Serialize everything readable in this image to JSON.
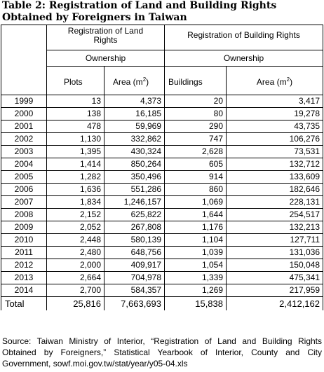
{
  "title": "Table 2: Registration of Land and Building Rights Obtained by Foreigners in Taiwan",
  "headers": {
    "land_group": "Registration of Land Rights",
    "building_group": "Registration of Building Rights",
    "ownership_land": "Ownership",
    "ownership_building": "Ownership",
    "col_plots": "Plots",
    "col_land_area": "Area (m",
    "col_buildings": "Buildings",
    "col_building_area": "Area (m",
    "area_superscript": "2",
    "area_close": ")"
  },
  "rows": [
    {
      "year": "1999",
      "plots": "13",
      "land_area": "4,373",
      "buildings": "20",
      "building_area": "3,417"
    },
    {
      "year": "2000",
      "plots": "138",
      "land_area": "16,185",
      "buildings": "80",
      "building_area": "19,278"
    },
    {
      "year": "2001",
      "plots": "478",
      "land_area": "59,969",
      "buildings": "290",
      "building_area": "43,735"
    },
    {
      "year": "2002",
      "plots": "1,130",
      "land_area": "332,862",
      "buildings": "747",
      "building_area": "106,276"
    },
    {
      "year": "2003",
      "plots": "1,395",
      "land_area": "430,324",
      "buildings": "2,628",
      "building_area": "73,531"
    },
    {
      "year": "2004",
      "plots": "1,414",
      "land_area": "850,264",
      "buildings": "605",
      "building_area": "132,712"
    },
    {
      "year": "2005",
      "plots": "1,282",
      "land_area": "350,496",
      "buildings": "914",
      "building_area": "133,609"
    },
    {
      "year": "2006",
      "plots": "1,636",
      "land_area": "551,286",
      "buildings": "860",
      "building_area": "182,646"
    },
    {
      "year": "2007",
      "plots": "1,834",
      "land_area": "1,246,157",
      "buildings": "1,069",
      "building_area": "228,131"
    },
    {
      "year": "2008",
      "plots": "2,152",
      "land_area": "625,822",
      "buildings": "1,644",
      "building_area": "254,517"
    },
    {
      "year": "2009",
      "plots": "2,052",
      "land_area": "267,808",
      "buildings": "1,176",
      "building_area": "132,213"
    },
    {
      "year": "2010",
      "plots": "2,448",
      "land_area": "580,139",
      "buildings": "1,104",
      "building_area": "127,711"
    },
    {
      "year": "2011",
      "plots": "2,480",
      "land_area": "648,756",
      "buildings": "1,039",
      "building_area": "131,036"
    },
    {
      "year": "2012",
      "plots": "2,000",
      "land_area": "409,917",
      "buildings": "1,054",
      "building_area": "150,048"
    },
    {
      "year": "2013",
      "plots": "2,664",
      "land_area": "704,978",
      "buildings": "1,339",
      "building_area": "475,341"
    },
    {
      "year": "2014",
      "plots": "2,700",
      "land_area": "584,357",
      "buildings": "1,269",
      "building_area": "217,959"
    }
  ],
  "total": {
    "label": "Total",
    "plots": "25,816",
    "land_area": "7,663,693",
    "buildings": "15,838",
    "building_area": "2,412,162"
  },
  "source": "Source: Taiwan Ministry of Interior, “Registration of Land and Building Rights Obtained by Foreigners,” Statistical Yearbook of Interior, County and City Government, sowf.moi.gov.tw/stat/year/y05-04.xls"
}
